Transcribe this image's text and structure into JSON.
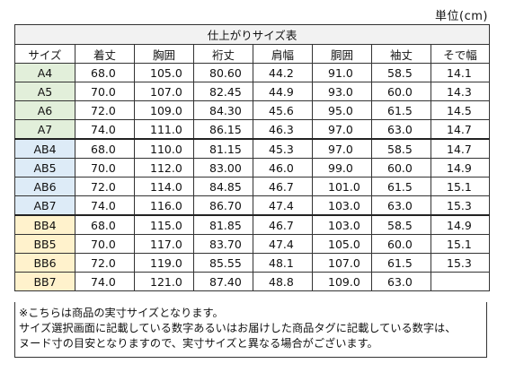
{
  "unit_label": "単位(cm)",
  "table_title": "仕上がりサイズ表",
  "headers": [
    "サイズ",
    "着丈",
    "胸囲",
    "裄丈",
    "肩幅",
    "胴囲",
    "袖丈",
    "そで幅"
  ],
  "rows": [
    [
      "A4",
      "68.0",
      "105.0",
      "80.60",
      "44.2",
      "91.0",
      "58.5",
      "14.1"
    ],
    [
      "A5",
      "70.0",
      "107.0",
      "82.45",
      "44.9",
      "93.0",
      "60.0",
      "14.3"
    ],
    [
      "A6",
      "72.0",
      "109.0",
      "84.30",
      "45.6",
      "95.0",
      "61.5",
      "14.5"
    ],
    [
      "A7",
      "74.0",
      "111.0",
      "86.15",
      "46.3",
      "97.0",
      "63.0",
      "14.7"
    ],
    [
      "AB4",
      "68.0",
      "110.0",
      "81.15",
      "45.3",
      "97.0",
      "58.5",
      "14.7"
    ],
    [
      "AB5",
      "70.0",
      "112.0",
      "83.00",
      "46.0",
      "99.0",
      "60.0",
      "14.9"
    ],
    [
      "AB6",
      "72.0",
      "114.0",
      "84.85",
      "46.7",
      "101.0",
      "61.5",
      "15.1"
    ],
    [
      "AB7",
      "74.0",
      "116.0",
      "86.70",
      "47.4",
      "103.0",
      "63.0",
      "15.3"
    ],
    [
      "BB4",
      "68.0",
      "115.0",
      "81.85",
      "46.7",
      "103.0",
      "58.5",
      "14.9"
    ],
    [
      "BB5",
      "70.0",
      "117.0",
      "83.70",
      "47.4",
      "105.0",
      "60.0",
      "15.1"
    ],
    [
      "BB6",
      "72.0",
      "119.0",
      "85.55",
      "48.1",
      "107.0",
      "61.5",
      "15.3"
    ],
    [
      "BB7",
      "74.0",
      "121.0",
      "87.40",
      "48.8",
      "109.0",
      "63.0",
      ""
    ]
  ],
  "notes": [
    "※こちらは商品の実寸サイズとなります。",
    "サイズ選択画面に記載している数字あるいはお届けした商品タグに記載している数字は、",
    "ヌード寸の目安となりますので、実寸サイズと異なる場合がございます。"
  ],
  "colors": {
    "group_a": "#e2efda",
    "group_ab": "#ddebf7",
    "group_bb": "#fff2cc",
    "title_bg": "#f2f2f2",
    "border": "#333333"
  }
}
